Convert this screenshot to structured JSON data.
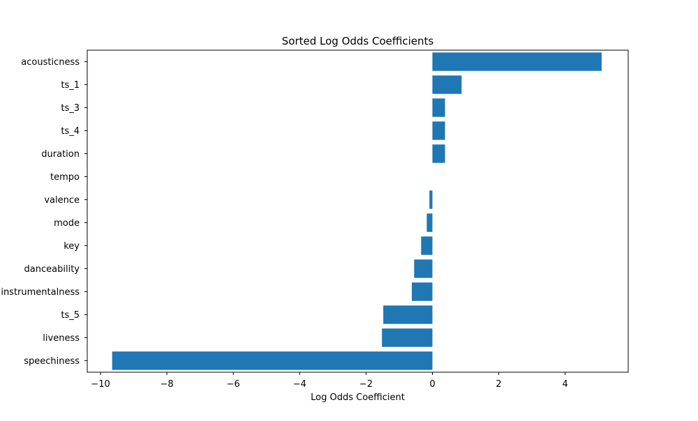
{
  "chart_data": {
    "type": "bar",
    "orientation": "horizontal",
    "title": "Sorted Log Odds Coefficients",
    "xlabel": "Log Odds Coefficient",
    "ylabel": "",
    "xlim": [
      -10.4,
      5.9
    ],
    "xticks": [
      -10,
      -8,
      -6,
      -4,
      -2,
      0,
      2,
      4
    ],
    "xtick_labels": [
      "−10",
      "−8",
      "−6",
      "−4",
      "−2",
      "0",
      "2",
      "4"
    ],
    "categories": [
      "acousticness",
      "ts_1",
      "ts_3",
      "ts_4",
      "duration",
      "tempo",
      "valence",
      "mode",
      "key",
      "danceability",
      "instrumentalness",
      "ts_5",
      "liveness",
      "speechiness"
    ],
    "values": [
      5.1,
      0.88,
      0.38,
      0.38,
      0.38,
      0.0,
      -0.09,
      -0.17,
      -0.34,
      -0.55,
      -0.62,
      -1.48,
      -1.52,
      -9.65
    ],
    "color": "#1f77b4",
    "grid": false,
    "legend": false
  }
}
